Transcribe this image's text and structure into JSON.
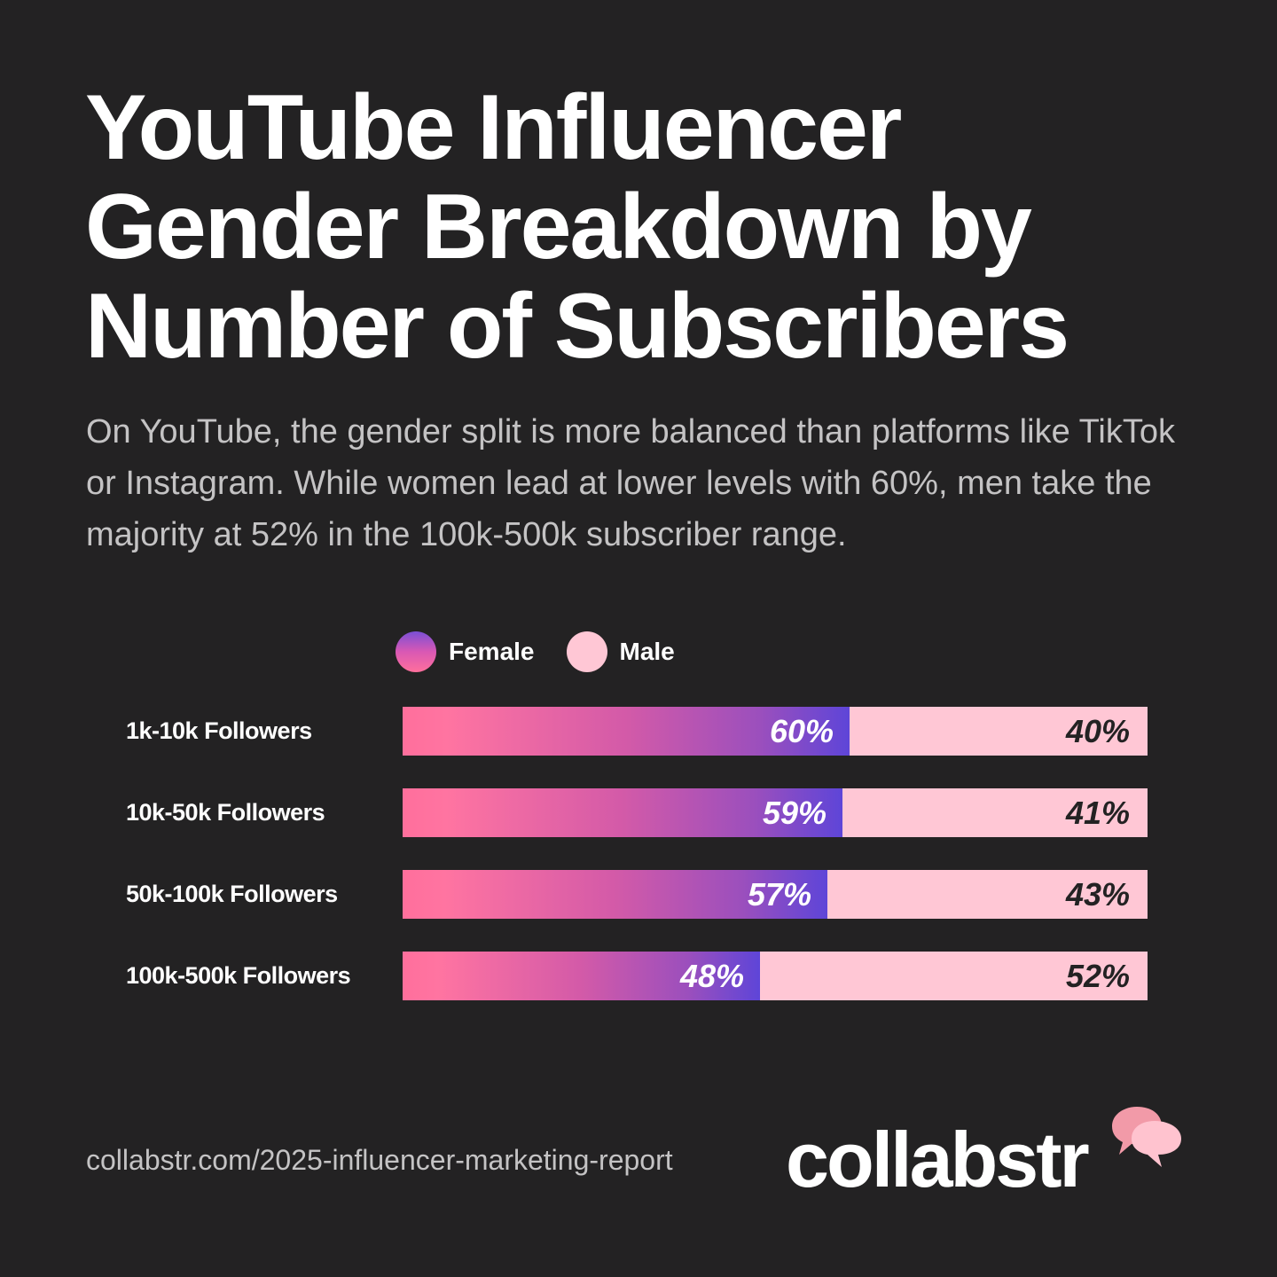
{
  "title_lines": [
    "YouTube Influencer",
    "Gender Breakdown by",
    "Number of Subscribers"
  ],
  "subtitle": "On YouTube, the gender split is more balanced than platforms like TikTok or Instagram. While women lead at lower levels with 60%, men take the majority at 52% in the 100k-500k subscriber range.",
  "legend": {
    "female": "Female",
    "male": "Male"
  },
  "colors": {
    "background": "#232223",
    "male": "#ffc7d5",
    "female_gradient_start": "#ff6f9c",
    "female_gradient_end": "#5e45d8"
  },
  "chart_data": {
    "type": "bar",
    "orientation": "horizontal",
    "stacked": true,
    "percent": true,
    "categories": [
      "1k-10k Followers",
      "10k-50k Followers",
      "50k-100k Followers",
      "100k-500k Followers"
    ],
    "series": [
      {
        "name": "Female",
        "values": [
          60,
          59,
          57,
          48
        ],
        "labels": [
          "60%",
          "59%",
          "57%",
          "48%"
        ]
      },
      {
        "name": "Male",
        "values": [
          40,
          41,
          43,
          52
        ],
        "labels": [
          "40%",
          "41%",
          "43%",
          "52%"
        ]
      }
    ],
    "xlim": [
      0,
      100
    ],
    "legend": "top",
    "grid": false
  },
  "footer": {
    "url": "collabstr.com/2025-influencer-marketing-report",
    "brand": "collabstr"
  }
}
